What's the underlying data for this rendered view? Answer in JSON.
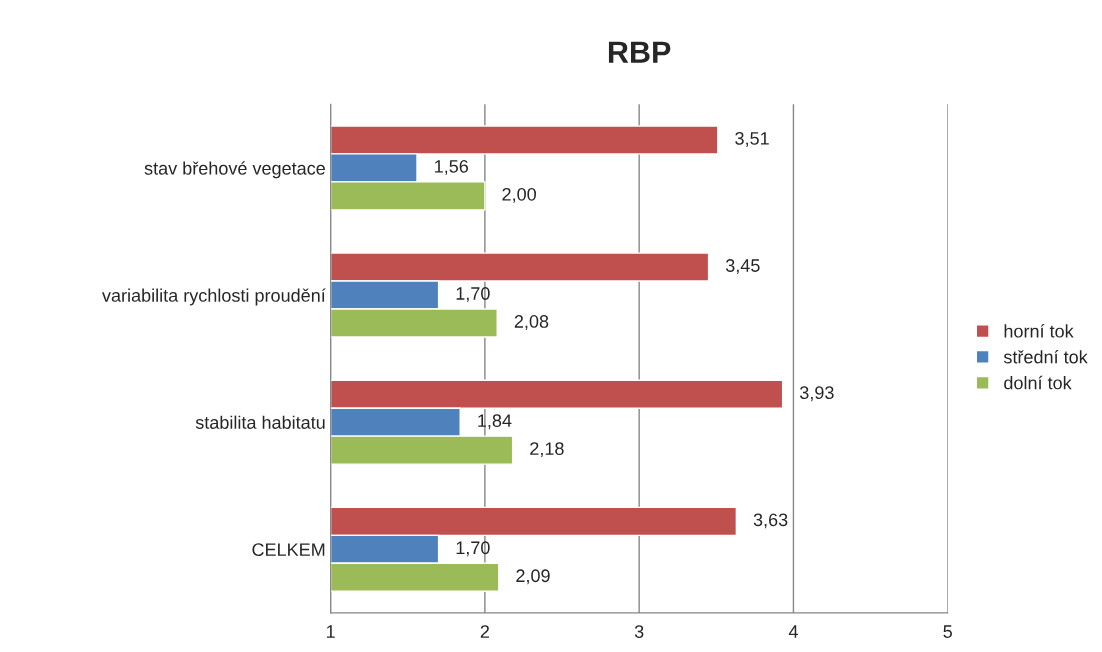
{
  "chart_data": {
    "type": "bar",
    "orientation": "horizontal",
    "title": "RBP",
    "categories": [
      "stav břehové vegetace",
      "variabilita rychlosti proudění",
      "stabilita habitatu",
      "CELKEM"
    ],
    "series": [
      {
        "name": "horní tok",
        "color": "#c0504d",
        "values": [
          3.51,
          3.45,
          3.93,
          3.63
        ],
        "value_labels": [
          "3,51",
          "3,45",
          "3,93",
          "3,63"
        ]
      },
      {
        "name": "střední tok",
        "color": "#4f81bd",
        "values": [
          1.56,
          1.7,
          1.84,
          1.7
        ],
        "value_labels": [
          "1,56",
          "1,70",
          "1,84",
          "1,70"
        ]
      },
      {
        "name": "dolní tok",
        "color": "#9bbb59",
        "values": [
          2.0,
          2.08,
          2.18,
          2.09
        ],
        "value_labels": [
          "2,00",
          "2,08",
          "2,18",
          "2,09"
        ]
      }
    ],
    "xlim": [
      1,
      5
    ],
    "xticks": [
      1,
      2,
      3,
      4,
      5
    ],
    "grid": "x",
    "legend": "right"
  }
}
